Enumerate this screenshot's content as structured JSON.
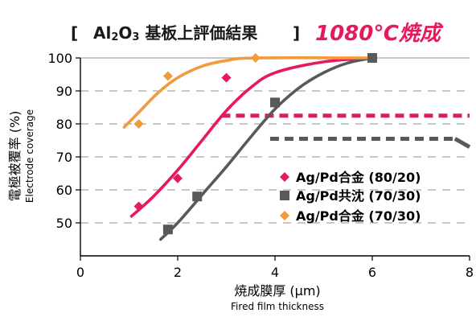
{
  "colors": {
    "agpd_80_20": "#e6195a",
    "agpd_coprecip_70_30": "#595959",
    "agpd_70_30": "#f39a3c",
    "grid": "#a6a6a6",
    "axis": "#000000"
  },
  "title": {
    "bracket_open": "[",
    "chem_al": "Al",
    "chem_sub1": "2",
    "chem_o": "O",
    "chem_sub2": "3",
    "text_jp": " 基板上評価結果",
    "bracket_close": "]",
    "condition": "1080℃焼成"
  },
  "chart_data": {
    "type": "scatter",
    "xlabel": "焼成膜厚 (μm)",
    "xlabel_en": "Fired film thickness",
    "ylabel": "電極被覆率 (%)",
    "ylabel_en": "Electrode coverage",
    "xlim": [
      0,
      8
    ],
    "ylim": [
      40,
      100
    ],
    "x_ticks": [
      "0",
      "2",
      "4",
      "6",
      "8"
    ],
    "y_ticks": [
      "100",
      "90",
      "80",
      "70",
      "60",
      "50"
    ],
    "x_tick_values": [
      0,
      2,
      4,
      6,
      8
    ],
    "y_tick_values": [
      100,
      90,
      80,
      70,
      60,
      50
    ],
    "grid": "horizontal-dashed",
    "legend_position": "inside-right",
    "series": [
      {
        "name": "Ag/Pd合金 (80/20)",
        "marker": "diamond",
        "color_key": "agpd_80_20",
        "points": [
          [
            1.2,
            55
          ],
          [
            2.0,
            63.5
          ],
          [
            3.0,
            94
          ],
          [
            6.0,
            100
          ]
        ],
        "fit": [
          [
            1.05,
            52
          ],
          [
            1.5,
            58
          ],
          [
            2.0,
            66
          ],
          [
            2.5,
            75
          ],
          [
            3.0,
            84
          ],
          [
            3.5,
            91
          ],
          [
            4.0,
            95.5
          ],
          [
            5.0,
            98.8
          ],
          [
            6.0,
            100
          ]
        ],
        "plateau": {
          "x": [
            2.9,
            8.0
          ],
          "y": 82.5
        }
      },
      {
        "name": "Ag/Pd共沈 (70/30)",
        "marker": "square",
        "color_key": "agpd_coprecip_70_30",
        "points": [
          [
            1.8,
            48
          ],
          [
            2.4,
            58
          ],
          [
            4.0,
            86.5
          ],
          [
            6.0,
            100
          ]
        ],
        "fit": [
          [
            1.65,
            45
          ],
          [
            2.0,
            50
          ],
          [
            2.5,
            58.5
          ],
          [
            3.0,
            67
          ],
          [
            3.5,
            76
          ],
          [
            4.0,
            84.5
          ],
          [
            4.5,
            91
          ],
          [
            5.0,
            95.5
          ],
          [
            5.5,
            98.5
          ],
          [
            6.0,
            100
          ]
        ],
        "plateau": {
          "x": [
            3.9,
            7.7
          ],
          "y": 75.5
        },
        "plateau_tail": [
          [
            7.7,
            75.5
          ],
          [
            8.0,
            73
          ]
        ]
      },
      {
        "name": "Ag/Pd合金 (70/30)",
        "marker": "diamond",
        "color_key": "agpd_70_30",
        "points": [
          [
            1.2,
            80
          ],
          [
            1.8,
            94.5
          ],
          [
            3.6,
            100
          ]
        ],
        "fit": [
          [
            0.9,
            79
          ],
          [
            1.2,
            83.5
          ],
          [
            1.6,
            89.5
          ],
          [
            2.0,
            94
          ],
          [
            2.5,
            97.5
          ],
          [
            3.0,
            99.2
          ],
          [
            3.6,
            100
          ],
          [
            6.0,
            100
          ]
        ]
      }
    ]
  }
}
